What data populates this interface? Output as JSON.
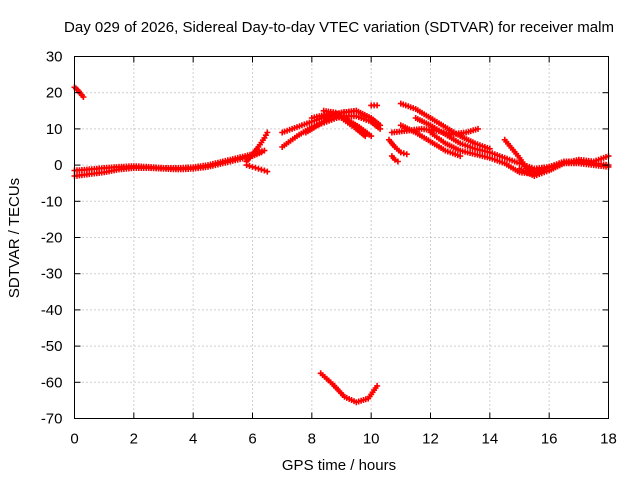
{
  "chart_data": {
    "type": "scatter",
    "title": "Day 029 of 2026, Sidereal Day-to-day VTEC variation (SDTVAR) for receiver malm",
    "xlabel": "GPS time / hours",
    "ylabel": "SDTVAR / TECUs",
    "xlim": [
      0,
      18
    ],
    "ylim": [
      -70,
      30
    ],
    "xticks": [
      "0",
      "2",
      "4",
      "6",
      "8",
      "10",
      "12",
      "14",
      "16",
      "18"
    ],
    "yticks": [
      "30",
      "20",
      "10",
      "0",
      "-10",
      "-20",
      "-30",
      "-40",
      "-50",
      "-60",
      "-70"
    ],
    "grid": true,
    "marker_color": "#ff0000",
    "series": [
      {
        "name": "s1",
        "x": [
          0.0,
          0.1,
          0.2,
          0.3
        ],
        "y": [
          21.5,
          20.8,
          19.8,
          18.8
        ]
      },
      {
        "name": "s2",
        "x": [
          0.0,
          0.5,
          1.0,
          1.5,
          2.0,
          2.5,
          3.0,
          3.5,
          4.0,
          4.5,
          5.0,
          5.5,
          6.0,
          6.3
        ],
        "y": [
          -3.0,
          -2.5,
          -2.0,
          -1.2,
          -0.8,
          -0.8,
          -1.0,
          -1.2,
          -1.0,
          -0.5,
          0.5,
          1.5,
          2.5,
          3.5
        ]
      },
      {
        "name": "s3",
        "x": [
          0.0,
          0.5,
          1.0,
          1.5,
          2.0,
          2.5,
          3.0,
          3.5,
          4.0,
          4.5,
          5.0,
          5.5,
          6.0,
          6.4
        ],
        "y": [
          -1.5,
          -1.2,
          -0.8,
          -0.5,
          -0.3,
          -0.5,
          -0.8,
          -0.8,
          -0.6,
          0.0,
          1.0,
          2.0,
          3.0,
          4.0
        ]
      },
      {
        "name": "s4",
        "x": [
          5.8,
          6.0,
          6.2,
          6.4,
          6.5
        ],
        "y": [
          1.0,
          3.0,
          5.0,
          7.5,
          9.0
        ]
      },
      {
        "name": "s5",
        "x": [
          5.8,
          6.0,
          6.2,
          6.4,
          6.5
        ],
        "y": [
          0.0,
          -0.5,
          -1.0,
          -1.5,
          -1.8
        ]
      },
      {
        "name": "s6",
        "x": [
          7.0,
          7.5,
          8.0,
          8.5,
          9.0,
          9.5
        ],
        "y": [
          9.0,
          10.5,
          12.0,
          13.5,
          14.5,
          15.0
        ]
      },
      {
        "name": "s7",
        "x": [
          7.0,
          7.5,
          8.0,
          8.5,
          9.0,
          9.5,
          10.0,
          10.3
        ],
        "y": [
          5.0,
          8.0,
          10.5,
          12.0,
          13.5,
          13.5,
          12.0,
          10.0
        ]
      },
      {
        "name": "s8",
        "x": [
          7.8,
          8.2,
          8.6,
          9.0,
          9.5,
          10.0,
          10.3
        ],
        "y": [
          9.0,
          11.0,
          13.0,
          14.5,
          15.0,
          13.0,
          11.0
        ]
      },
      {
        "name": "s9",
        "x": [
          8.0,
          8.5,
          9.0,
          9.5,
          9.8
        ],
        "y": [
          13.0,
          14.0,
          13.0,
          10.0,
          8.0
        ]
      },
      {
        "name": "s10",
        "x": [
          8.4,
          8.8,
          9.2,
          9.6,
          10.0
        ],
        "y": [
          15.0,
          14.5,
          12.5,
          10.5,
          8.0
        ]
      },
      {
        "name": "s11",
        "x": [
          10.0,
          10.1,
          10.2
        ],
        "y": [
          16.5,
          16.5,
          16.5
        ]
      },
      {
        "name": "s12",
        "x": [
          10.6,
          10.8,
          11.0,
          11.2
        ],
        "y": [
          7.0,
          5.0,
          3.5,
          3.0
        ]
      },
      {
        "name": "s13",
        "x": [
          10.7,
          10.8,
          10.9
        ],
        "y": [
          2.5,
          1.5,
          1.0
        ]
      },
      {
        "name": "s14",
        "x": [
          10.7,
          11.2,
          11.7,
          12.2,
          12.7,
          13.2,
          13.6
        ],
        "y": [
          9.0,
          9.5,
          10.0,
          9.5,
          8.5,
          9.0,
          10.0
        ]
      },
      {
        "name": "s15",
        "x": [
          11.0,
          11.5,
          12.0,
          12.5,
          13.0,
          13.5,
          14.0
        ],
        "y": [
          17.0,
          15.5,
          13.0,
          10.5,
          8.0,
          6.0,
          4.5
        ]
      },
      {
        "name": "s16",
        "x": [
          11.5,
          12.0,
          12.5,
          13.0,
          13.5,
          14.0,
          14.5,
          15.0,
          15.5,
          16.0
        ],
        "y": [
          13.0,
          11.0,
          8.5,
          6.0,
          4.5,
          3.5,
          2.0,
          0.5,
          -1.0,
          -0.5
        ]
      },
      {
        "name": "s17",
        "x": [
          12.0,
          12.5,
          13.0,
          13.5,
          14.0,
          14.5,
          15.0,
          15.5,
          16.0,
          16.5,
          17.0,
          17.5,
          18.0
        ],
        "y": [
          9.0,
          6.0,
          4.0,
          3.0,
          2.0,
          0.5,
          -2.0,
          -2.5,
          -0.5,
          0.5,
          0.5,
          0.0,
          -0.5
        ]
      },
      {
        "name": "s18",
        "x": [
          11.0,
          11.5,
          12.0,
          12.5,
          13.0
        ],
        "y": [
          11.0,
          9.0,
          6.5,
          4.0,
          2.5
        ]
      },
      {
        "name": "s19",
        "x": [
          14.5,
          15.0,
          15.3,
          15.6,
          16.0,
          16.5,
          17.0,
          17.5,
          18.0
        ],
        "y": [
          7.0,
          2.0,
          -1.5,
          -2.0,
          -0.5,
          1.0,
          1.0,
          0.5,
          0.0
        ]
      },
      {
        "name": "s20",
        "x": [
          15.0,
          15.5,
          16.0,
          16.5,
          17.0,
          17.5,
          18.0
        ],
        "y": [
          -1.0,
          -3.0,
          -1.5,
          0.5,
          1.5,
          1.0,
          2.5
        ]
      },
      {
        "name": "s21",
        "x": [
          8.3,
          8.7,
          9.1,
          9.5,
          9.9,
          10.2
        ],
        "y": [
          -57.5,
          -60.5,
          -64.0,
          -65.5,
          -64.5,
          -61.0
        ]
      }
    ]
  }
}
